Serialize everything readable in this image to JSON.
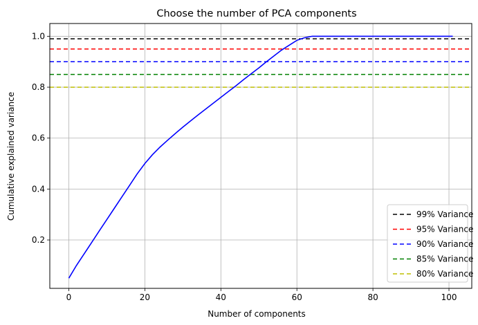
{
  "chart_data": {
    "type": "line",
    "title": "Choose the number of PCA components",
    "xlabel": "Number of components",
    "ylabel": "Cumulative explained variance",
    "xlim": [
      -5,
      106
    ],
    "ylim": [
      0.01,
      1.05
    ],
    "xticks": [
      0,
      20,
      40,
      60,
      80,
      100
    ],
    "yticks": [
      0.2,
      0.4,
      0.6,
      0.8,
      1.0
    ],
    "xtick_labels": [
      "0",
      "20",
      "40",
      "60",
      "80",
      "100"
    ],
    "ytick_labels": [
      "0.2",
      "0.4",
      "0.6",
      "0.8",
      "1.0"
    ],
    "grid": true,
    "legend_position": "lower-right",
    "series": [
      {
        "color": "#0000ff",
        "style": "solid",
        "x": [
          0,
          2,
          4,
          6,
          8,
          10,
          12,
          14,
          16,
          18,
          20,
          22,
          24,
          26,
          28,
          30,
          32,
          34,
          36,
          38,
          40,
          42,
          44,
          46,
          48,
          50,
          52,
          54,
          56,
          58,
          60,
          62,
          64,
          70,
          80,
          90,
          101
        ],
        "y": [
          0.05,
          0.1,
          0.145,
          0.19,
          0.235,
          0.28,
          0.325,
          0.37,
          0.415,
          0.46,
          0.5,
          0.535,
          0.565,
          0.592,
          0.618,
          0.643,
          0.667,
          0.691,
          0.714,
          0.737,
          0.76,
          0.783,
          0.806,
          0.83,
          0.853,
          0.876,
          0.9,
          0.923,
          0.946,
          0.965,
          0.984,
          0.994,
          1.0,
          1.0,
          1.0,
          1.0,
          1.0
        ]
      }
    ],
    "hlines": [
      {
        "name": "99% Variance",
        "y": 0.99,
        "color": "#000000"
      },
      {
        "name": "95% Variance",
        "y": 0.95,
        "color": "#ff0000"
      },
      {
        "name": "90% Variance",
        "y": 0.9,
        "color": "#0000ff"
      },
      {
        "name": "85% Variance",
        "y": 0.85,
        "color": "#008000"
      },
      {
        "name": "80% Variance",
        "y": 0.8,
        "color": "#bfbf00"
      }
    ]
  }
}
